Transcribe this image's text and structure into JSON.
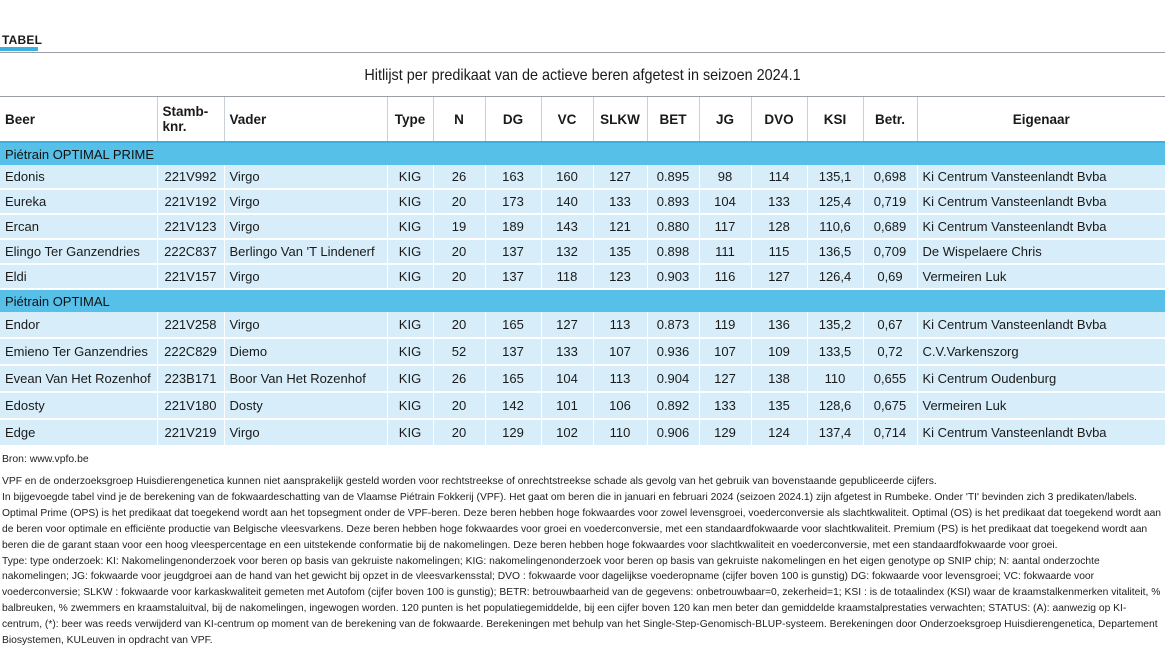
{
  "tag": "TABEL",
  "title": "Hitlijst per predikaat van de actieve beren  afgetest in seizoen 2024.1",
  "columns": [
    "Beer",
    "Stamb-knr.",
    "Vader",
    "Type",
    "N",
    "DG",
    "VC",
    "SLKW",
    "BET",
    "JG",
    "DVO",
    "KSI",
    "Betr.",
    "Eigenaar"
  ],
  "groups": [
    {
      "name": "Piétrain OPTIMAL PRIME",
      "rows": [
        [
          "Edonis",
          "221V992",
          "Virgo",
          "KIG",
          "26",
          "163",
          "160",
          "127",
          "0.895",
          "98",
          "114",
          "135,1",
          "0,698",
          "Ki Centrum Vansteenlandt Bvba"
        ],
        [
          "Eureka",
          "221V192",
          "Virgo",
          "KIG",
          "20",
          "173",
          "140",
          "133",
          "0.893",
          "104",
          "133",
          "125,4",
          "0,719",
          "Ki Centrum Vansteenlandt Bvba"
        ],
        [
          "Ercan",
          "221V123",
          "Virgo",
          "KIG",
          "19",
          "189",
          "143",
          "121",
          "0.880",
          "117",
          "128",
          "110,6",
          "0,689",
          "Ki Centrum Vansteenlandt Bvba"
        ],
        [
          "Elingo Ter Ganzendries",
          "222C837",
          "Berlingo Van 'T Lindenerf",
          "KIG",
          "20",
          "137",
          "132",
          "135",
          "0.898",
          "111",
          "115",
          "136,5",
          "0,709",
          "De Wispelaere Chris"
        ],
        [
          "Eldi",
          "221V157",
          "Virgo",
          "KIG",
          "20",
          "137",
          "118",
          "123",
          "0.903",
          "116",
          "127",
          "126,4",
          "0,69",
          "Vermeiren Luk"
        ]
      ]
    },
    {
      "name": "Piétrain OPTIMAL",
      "rows": [
        [
          "Endor",
          "221V258",
          "Virgo",
          "KIG",
          "20",
          "165",
          "127",
          "113",
          "0.873",
          "119",
          "136",
          "135,2",
          "0,67",
          "Ki Centrum Vansteenlandt Bvba"
        ],
        [
          "Emieno Ter Ganzendries",
          "222C829",
          "Diemo",
          "KIG",
          "52",
          "137",
          "133",
          "107",
          "0.936",
          "107",
          "109",
          "133,5",
          "0,72",
          "C.V.Varkenszorg"
        ],
        [
          "Evean Van Het Rozenhof",
          "223B171",
          "Boor Van Het Rozenhof",
          "KIG",
          "26",
          "165",
          "104",
          "113",
          "0.904",
          "127",
          "138",
          "110",
          "0,655",
          "Ki Centrum Oudenburg"
        ],
        [
          "Edosty",
          "221V180",
          "Dosty",
          "KIG",
          "20",
          "142",
          "101",
          "106",
          "0.892",
          "133",
          "135",
          "128,6",
          "0,675",
          "Vermeiren Luk"
        ],
        [
          "Edge",
          "221V219",
          "Virgo",
          "KIG",
          "20",
          "129",
          "102",
          "110",
          "0.906",
          "129",
          "124",
          "137,4",
          "0,714",
          "Ki Centrum Vansteenlandt Bvba"
        ]
      ]
    }
  ],
  "source": "Bron: www.vpfo.be",
  "notes": [
    "VPF en de onderzoeksgroep Huisdierengenetica kunnen niet aansprakelijk gesteld worden voor rechtstreekse of onrechtstreekse schade als gevolg van het gebruik van bovenstaande gepubliceerde cijfers.",
    "In bijgevoegde tabel vind je de berekening van de fokwaardeschatting van de Vlaamse Piétrain Fokkerij (VPF). Het gaat om beren die in januari en februari 2024 (seizoen 2024.1) zijn afgetest in Rumbeke. Onder 'TI' bevinden zich 3 predikaten/labels. Optimal Prime (OPS) is het predikaat dat toegekend wordt aan het topsegment onder de VPF-beren. Deze beren hebben hoge fokwaardes voor zowel levensgroei, voederconversie als slachtkwaliteit. Optimal (OS) is het predikaat dat toegekend wordt aan de beren voor optimale en efficiënte productie van Belgische vleesvarkens. Deze beren hebben hoge fokwaardes voor groei en voederconversie, met een standaardfokwaarde voor slachtkwaliteit. Premium (PS) is het predikaat dat toegekend wordt aan beren die de garant staan voor een hoog vleespercentage en een uitstekende conformatie bij de nakomelingen. Deze beren hebben hoge fokwaardes voor slachtkwaliteit en voederconversie, met een standaardfokwaarde voor groei.",
    "Type: type onderzoek: KI: Nakomelingenonderzoek voor beren op basis van gekruiste nakomelingen; KIG: nakomelingenonderzoek voor beren op basis van gekruiste nakomelingen en het eigen genotype op SNIP chip; N: aantal onderzochte nakomelingen; JG: fokwaarde voor jeugdgroei aan de hand van het gewicht bij opzet in de vleesvarkensstal; DVO : fokwaarde voor dagelijkse voederopname (cijfer boven 100 is gunstig) DG: fokwaarde voor levensgroei; VC: fokwaarde voor voederconversie; SLKW : fokwaarde voor karkaskwaliteit gemeten met Autofom (cijfer boven 100 is gunstig);  BETR: betrouwbaarheid van de gegevens: onbetrouwbaar=0, zekerheid=1; KSI : is de totaalindex (KSI) waar de kraamstalkenmerken vitaliteit, % balbreuken, % zwemmers en kraamstaluitval, bij de nakomelingen, ingewogen worden. 120 punten is het populatiegemiddelde, bij een cijfer boven 120 kan men beter dan gemiddelde kraamstalprestaties verwachten; STATUS: (A): aanwezig op KI-centrum, (*): beer was reeds verwijderd van KI-centrum op moment van de berekening van de fokwaarde. Berekeningen met behulp van het Single-Step-Genomisch-BLUP-systeem. Berekeningen door Onderzoeksgroep Huisdierengenetica, Departement Biosystemen, KULeuven in opdracht van VPF."
  ]
}
